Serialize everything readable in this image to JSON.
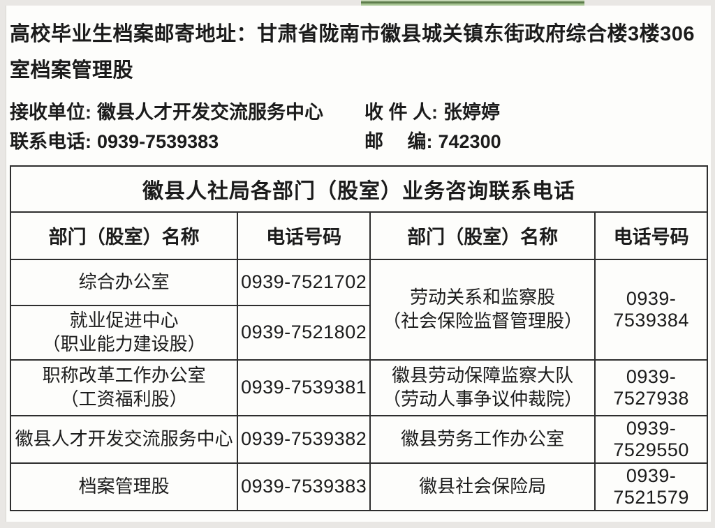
{
  "page": {
    "address_line": "高校毕业生档案邮寄地址：甘肃省陇南市徽县城关镇东街政府综合楼3楼306室档案管理股"
  },
  "recipient": {
    "unit_label": "接收单位:",
    "unit_value": "徽县人才开发交流服务中心",
    "person_label": "收 件 人:",
    "person_value": "张婷婷",
    "phone_label": "联系电话:",
    "phone_value": "0939-7539383",
    "postcode_label": "邮　  编:",
    "postcode_value": "742300"
  },
  "table": {
    "title": "徽县人社局各部门（股室）业务咨询联系电话",
    "headers": [
      "部门（股室）名称",
      "电话号码",
      "部门（股室）名称",
      "电话号码"
    ],
    "cells": {
      "r1_left_name": "综合办公室",
      "r1_left_phone": "0939-7521702",
      "r2_left_name": "就业促进中心",
      "r2_left_sub": "（职业能力建设股）",
      "r2_left_phone": "0939-7521802",
      "r12_right_name": "劳动关系和监察股",
      "r12_right_sub": "（社会保险监督管理股）",
      "r12_right_phone": "0939-7539384",
      "r3_left_name": "职称改革工作办公室",
      "r3_left_sub": "（工资福利股）",
      "r3_left_phone": "0939-7539381",
      "r3_right_name": "徽县劳动保障监察大队",
      "r3_right_sub": "（劳动人事争议仲裁院）",
      "r3_right_phone": "0939-7527938",
      "r4_left_name": "徽县人才开发交流服务中心",
      "r4_left_phone": "0939-7539382",
      "r4_right_name": "徽县劳务工作办公室",
      "r4_right_phone": "0939-7529550",
      "r5_left_name": "档案管理股",
      "r5_left_phone": "0939-7539383",
      "r5_right_name": "徽县社会保险局",
      "r5_right_phone": "0939-7521579"
    }
  },
  "colors": {
    "accent_green_dark": "#5e7d4c",
    "accent_green_light": "#a7c593",
    "table_border": "#2e2e2e",
    "page_background": "#fdfdfb"
  }
}
